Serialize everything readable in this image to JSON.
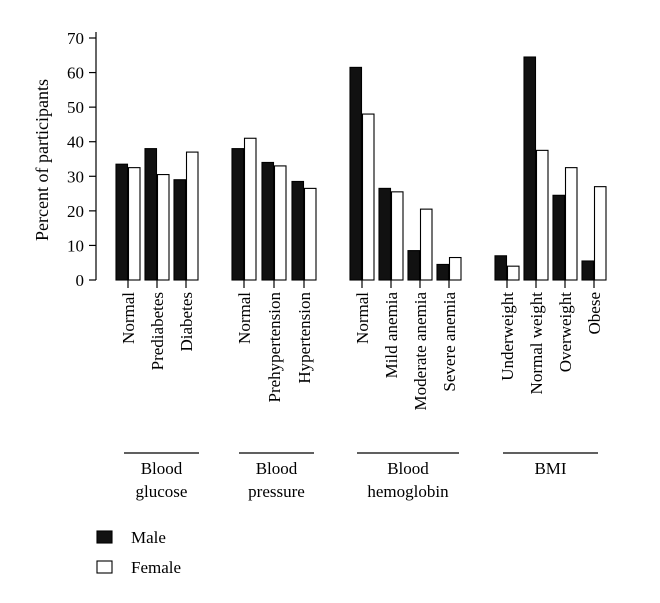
{
  "chart_data": {
    "type": "bar",
    "title": "",
    "xlabel": "",
    "ylabel": "Percent of participants",
    "ylim": [
      0,
      70
    ],
    "yticks": [
      0,
      10,
      20,
      30,
      40,
      50,
      60,
      70
    ],
    "grid": false,
    "legend_placement": "bottom-left",
    "groups": [
      {
        "name": "Blood glucose",
        "label_lines": [
          "Blood",
          "glucose"
        ],
        "categories": [
          "Normal",
          "Prediabetes",
          "Diabetes"
        ]
      },
      {
        "name": "Blood pressure",
        "label_lines": [
          "Blood",
          "pressure"
        ],
        "categories": [
          "Normal",
          "Prehypertension",
          "Hypertension"
        ]
      },
      {
        "name": "Blood hemoglobin",
        "label_lines": [
          "Blood",
          "hemoglobin"
        ],
        "categories": [
          "Normal",
          "Mild anemia",
          "Moderate anemia",
          "Severe anemia"
        ]
      },
      {
        "name": "BMI",
        "label_lines": [
          "BMI"
        ],
        "categories": [
          "Underweight",
          "Normal weight",
          "Overweight",
          "Obese"
        ]
      }
    ],
    "series": [
      {
        "name": "Male",
        "color": "#111111",
        "values": [
          33.5,
          38,
          29,
          38,
          34,
          28.5,
          61.5,
          26.5,
          8.5,
          4.5,
          7,
          64.5,
          24.5,
          5.5
        ]
      },
      {
        "name": "Female",
        "color": "#ffffff",
        "values": [
          32.5,
          30.5,
          37,
          41,
          33,
          26.5,
          48,
          25.5,
          20.5,
          6.5,
          4,
          37.5,
          32.5,
          27
        ]
      }
    ]
  }
}
